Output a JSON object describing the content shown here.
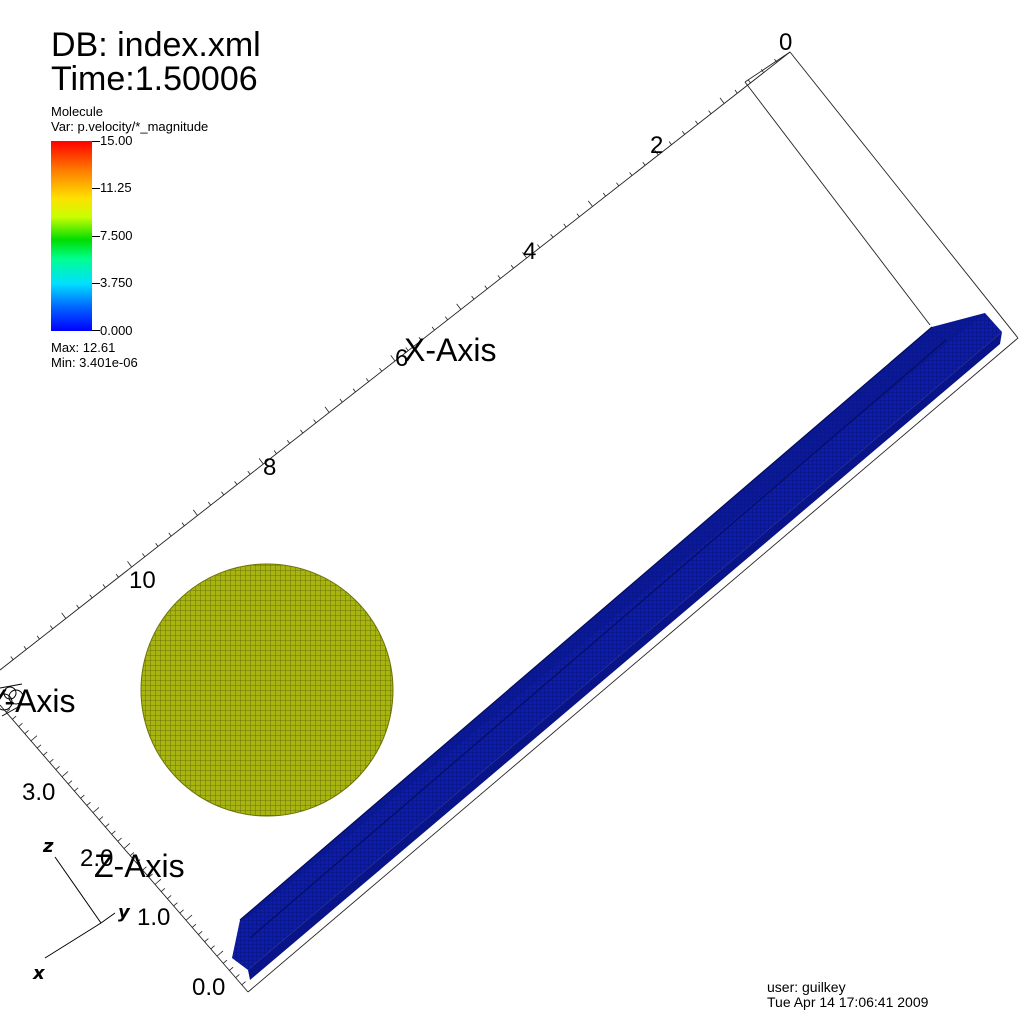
{
  "header": {
    "db_label": "DB: index.xml",
    "time_label": "Time:1.50006"
  },
  "legend": {
    "plot_name": "Molecule",
    "variable": "Var: p.velocity/*_magnitude",
    "ticks": [
      "15.00",
      "11.25",
      "7.500",
      "3.750",
      "0.000"
    ],
    "max_label": "Max:  12.61",
    "min_label": "Min:  3.401e-06"
  },
  "axes": {
    "x_axis_title": "X-Axis",
    "y_axis_title": "Y-Axis",
    "z_axis_title": "Z-Axis",
    "x_ticks": [
      "0",
      "2",
      "4",
      "6",
      "8",
      "10"
    ],
    "z_ticks": [
      "0.0",
      "1.0",
      "2.0",
      "3.0"
    ],
    "triad": {
      "x": "x",
      "y": "y",
      "z": "z"
    }
  },
  "colors": {
    "sphere": "#a6b40c",
    "block_front": "#0a1aa8",
    "block_top": "#12219a",
    "block_dark": "#060e6e"
  },
  "footer": {
    "user": "user: guilkey",
    "timestamp": "Tue Apr 14 17:06:41 2009"
  }
}
